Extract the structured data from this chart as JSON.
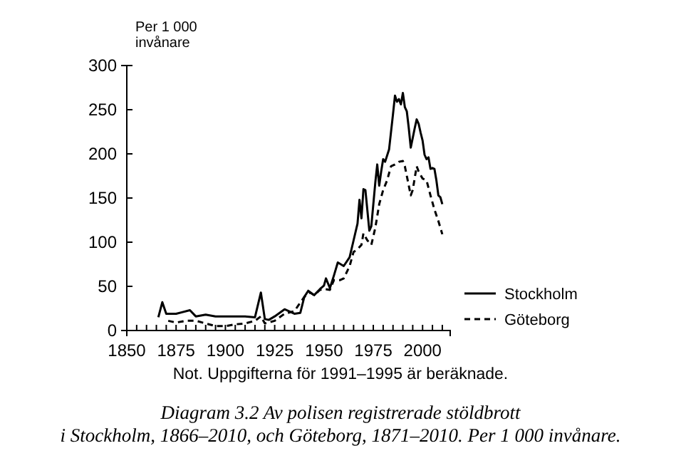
{
  "chart_data": {
    "type": "line",
    "title": "Diagram 3.2  Av polisen registrerade stöldbrott\ni Stockholm, 1866–2010, och Göteborg, 1871–2010. Per 1 000 invånare.",
    "ylabel": "Per 1 000\ninvånare",
    "annotations": [
      "Not. Uppgifterna för 1991–1995 är beräknade."
    ],
    "xlim": [
      1850,
      2014
    ],
    "ylim": [
      0,
      300
    ],
    "xticks": [
      1850,
      {
        "value": 1855,
        "label": null
      },
      {
        "value": 1860,
        "label": null
      },
      {
        "value": 1865,
        "label": null
      },
      {
        "value": 1870,
        "label": null
      },
      1875,
      {
        "value": 1880,
        "label": null
      },
      {
        "value": 1885,
        "label": null
      },
      {
        "value": 1890,
        "label": null
      },
      {
        "value": 1895,
        "label": null
      },
      1900,
      {
        "value": 1905,
        "label": null
      },
      {
        "value": 1910,
        "label": null
      },
      {
        "value": 1915,
        "label": null
      },
      {
        "value": 1920,
        "label": null
      },
      1925,
      {
        "value": 1930,
        "label": null
      },
      {
        "value": 1935,
        "label": null
      },
      {
        "value": 1940,
        "label": null
      },
      {
        "value": 1945,
        "label": null
      },
      1950,
      {
        "value": 1955,
        "label": null
      },
      {
        "value": 1960,
        "label": null
      },
      {
        "value": 1965,
        "label": null
      },
      {
        "value": 1970,
        "label": null
      },
      1975,
      {
        "value": 1980,
        "label": null
      },
      {
        "value": 1985,
        "label": null
      },
      {
        "value": 1990,
        "label": null
      },
      {
        "value": 1995,
        "label": null
      },
      2000,
      {
        "value": 2005,
        "label": null
      },
      {
        "value": 2010,
        "label": null
      }
    ],
    "yticks": [
      0,
      50,
      100,
      150,
      200,
      250,
      300
    ],
    "grid": false,
    "legend": "right",
    "marker": "none",
    "series": [
      {
        "name": "Stockholm",
        "color": "#000000",
        "line_style": "solid",
        "x": [
          1866,
          1868,
          1870,
          1875,
          1882,
          1885,
          1890,
          1895,
          1900,
          1905,
          1910,
          1915,
          1918,
          1920,
          1922,
          1925,
          1930,
          1935,
          1938,
          1940,
          1942,
          1945,
          1948,
          1950,
          1951,
          1953,
          1955,
          1957,
          1960,
          1963,
          1965,
          1967,
          1968,
          1969,
          1970,
          1971,
          1973,
          1974,
          1976,
          1977,
          1978,
          1979,
          1980,
          1981,
          1983,
          1985,
          1986,
          1987,
          1988,
          1989,
          1990,
          1991,
          1992,
          1993,
          1994,
          1995,
          1996,
          1997,
          1998,
          1999,
          2000,
          2001,
          2002,
          2003,
          2004,
          2005,
          2006,
          2007,
          2008,
          2009,
          2010
        ],
        "values": [
          15,
          32,
          19,
          19,
          23,
          16,
          18,
          16,
          16,
          16,
          16,
          15,
          43,
          13,
          12,
          16,
          24,
          19,
          20,
          38,
          45,
          40,
          47,
          51,
          59,
          48,
          62,
          77,
          73,
          83,
          102,
          121,
          148,
          127,
          160,
          159,
          113,
          118,
          167,
          188,
          164,
          180,
          194,
          191,
          205,
          245,
          266,
          259,
          262,
          256,
          269,
          253,
          248,
          229,
          207,
          218,
          229,
          239,
          234,
          224,
          215,
          199,
          194,
          196,
          183,
          184,
          183,
          170,
          153,
          151,
          143
        ]
      },
      {
        "name": "Göteborg",
        "color": "#000000",
        "line_style": "dashed",
        "x": [
          1871,
          1875,
          1880,
          1885,
          1890,
          1895,
          1900,
          1905,
          1910,
          1915,
          1918,
          1920,
          1925,
          1930,
          1935,
          1940,
          1943,
          1945,
          1948,
          1950,
          1953,
          1955,
          1958,
          1960,
          1963,
          1965,
          1967,
          1969,
          1970,
          1972,
          1974,
          1976,
          1978,
          1980,
          1982,
          1984,
          1986,
          1988,
          1990,
          1991,
          1993,
          1994,
          1995,
          1997,
          1998,
          2000,
          2002,
          2004,
          2006,
          2008,
          2010
        ],
        "values": [
          11,
          9,
          11,
          11,
          8,
          5,
          5,
          7,
          8,
          11,
          16,
          8,
          11,
          19,
          22,
          38,
          43,
          40,
          46,
          47,
          46,
          57,
          57,
          59,
          73,
          89,
          92,
          97,
          110,
          102,
          97,
          116,
          143,
          159,
          170,
          186,
          188,
          191,
          192,
          186,
          164,
          153,
          159,
          186,
          180,
          172,
          170,
          153,
          137,
          124,
          109
        ]
      }
    ]
  }
}
